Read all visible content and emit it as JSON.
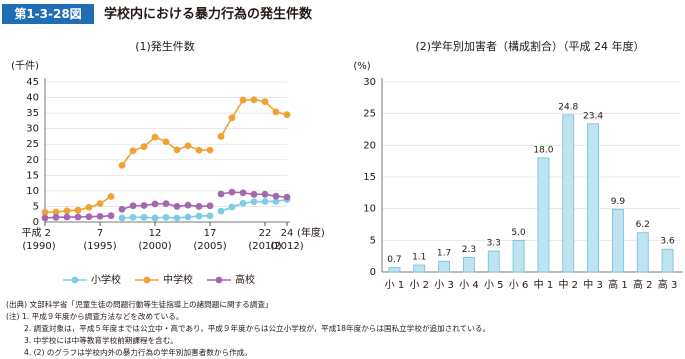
{
  "header": {
    "badge": "第1-3-28図",
    "title": "学校内における暴力行為の発生件数"
  },
  "chart_data": [
    {
      "type": "line",
      "title": "(1)発生件数",
      "ylabel": "(千件)",
      "xlabel": "(年度)",
      "x": [
        2,
        3,
        4,
        5,
        6,
        7,
        8,
        9,
        10,
        11,
        12,
        13,
        14,
        15,
        16,
        17,
        18,
        19,
        20,
        21,
        22,
        23,
        24
      ],
      "break_before": [
        9,
        18
      ],
      "xlim": [
        2,
        24
      ],
      "ylim": [
        0,
        45
      ],
      "yticks": [
        0,
        5,
        10,
        15,
        20,
        25,
        30,
        35,
        40,
        45
      ],
      "xticks": [
        {
          "value": 2,
          "label": "平成 2",
          "year": "(1990)"
        },
        {
          "value": 7,
          "label": "7",
          "year": "(1995)"
        },
        {
          "value": 12,
          "label": "12",
          "year": "(2000)"
        },
        {
          "value": 17,
          "label": "17",
          "year": "(2005)"
        },
        {
          "value": 22,
          "label": "22",
          "year": "(2010)"
        },
        {
          "value": 24,
          "label": "24",
          "year": "(2012)"
        }
      ],
      "grid": true,
      "legend": "bottom",
      "series": [
        {
          "name": "小学校",
          "color": "#7ecde3",
          "values": [
            null,
            null,
            null,
            null,
            null,
            null,
            null,
            1.3,
            1.5,
            1.5,
            1.3,
            1.5,
            1.3,
            1.6,
            1.9,
            2.0,
            3.5,
            4.8,
            6.0,
            6.5,
            6.6,
            6.6,
            7.2
          ]
        },
        {
          "name": "中学校",
          "color": "#f1a133",
          "values": [
            3.1,
            3.2,
            3.6,
            3.8,
            4.7,
            5.9,
            8.2,
            18.2,
            22.9,
            24.2,
            27.3,
            25.8,
            23.2,
            24.5,
            23.1,
            23.1,
            27.5,
            33.5,
            39.2,
            39.3,
            38.7,
            35.4,
            34.5
          ]
        },
        {
          "name": "高校",
          "color": "#a567b2",
          "values": [
            1.3,
            1.5,
            1.6,
            1.6,
            1.7,
            1.8,
            2.0,
            4.1,
            5.2,
            5.3,
            5.8,
            5.9,
            5.0,
            5.4,
            5.0,
            5.2,
            9.0,
            9.6,
            9.4,
            8.9,
            8.9,
            8.3,
            8.0
          ]
        }
      ]
    },
    {
      "type": "bar",
      "title": "(2)学年別加害者（構成割合）（平成 24 年度）",
      "ylabel": "(%)",
      "categories": [
        "小 1",
        "小 2",
        "小 3",
        "小 4",
        "小 5",
        "小 6",
        "中 1",
        "中 2",
        "中 3",
        "高 1",
        "高 2",
        "高 3"
      ],
      "values": [
        0.7,
        1.1,
        1.7,
        2.3,
        3.3,
        5.0,
        18.0,
        24.8,
        23.4,
        9.9,
        6.2,
        3.6
      ],
      "value_labels": [
        "0.7",
        "1.1",
        "1.7",
        "2.3",
        "3.3",
        "5.0",
        "18.0",
        "24.8",
        "23.4",
        "9.9",
        "6.2",
        "3.6"
      ],
      "color": "#bfe4f1",
      "ylim": [
        0,
        30
      ],
      "yticks": [
        0,
        5,
        10,
        15,
        20,
        25,
        30
      ],
      "grid": true
    }
  ],
  "notes": [
    "(出典) 文部科学省「児童生徒の問題行動等生徒指導上の諸問題に関する調査」",
    "(注) 1. 平成９年度から調査方法などを改めている。",
    "2. 調査対象は，平成５年度までは公立中・高であり，平成９年度からは公立小学校が，平成18年度からは国私立学校が追加されている。",
    "3. 中学校には中等教育学校前期課程を含む。",
    "4. (2) のグラフは学校内外の暴力行為の学年別加害者数から作成。"
  ]
}
